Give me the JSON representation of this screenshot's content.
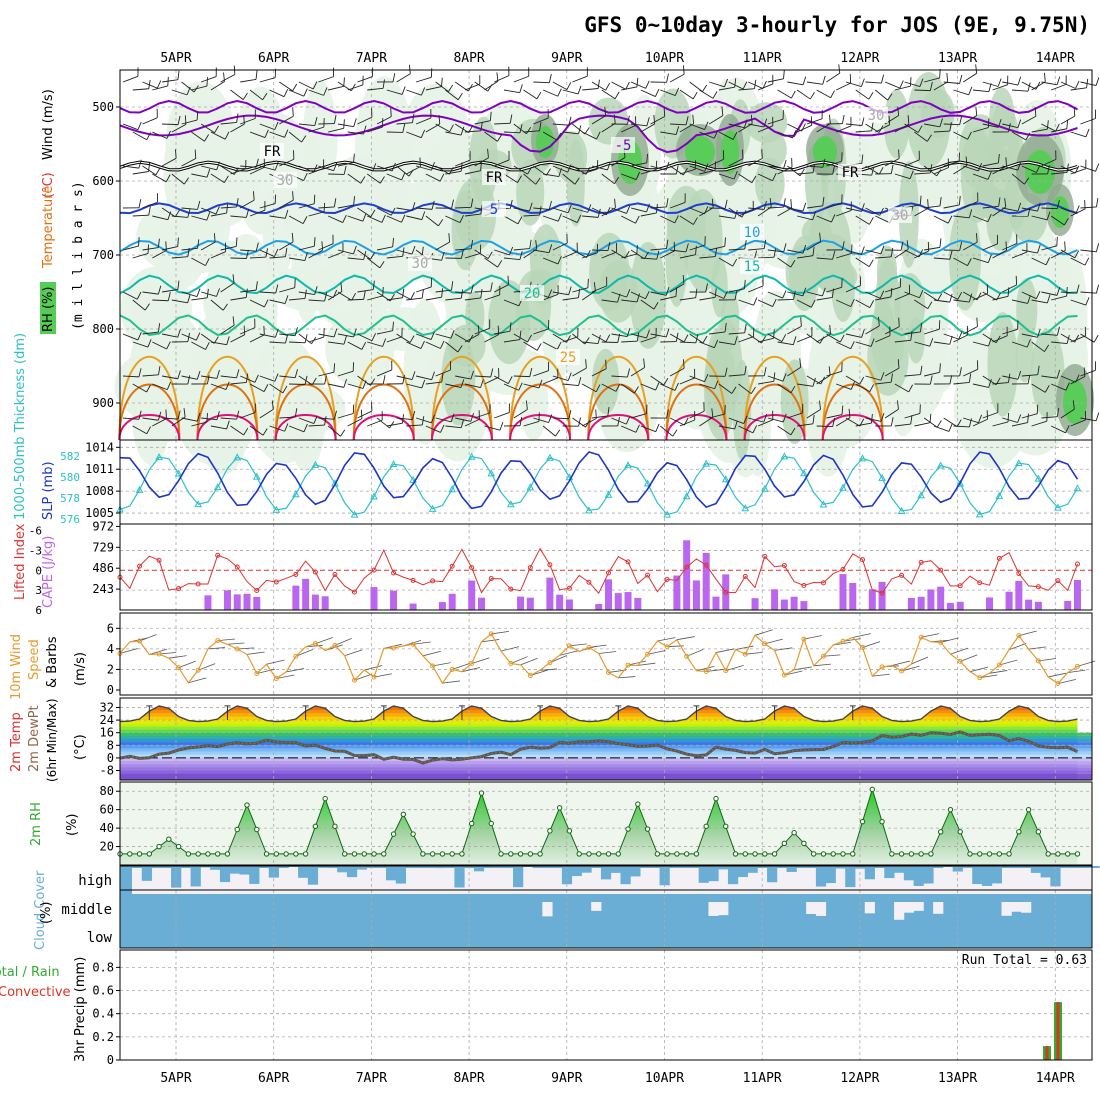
{
  "title": "GFS 0~10day 3-hourly for JOS (9E, 9.75N)",
  "dates": [
    "5APR",
    "6APR",
    "7APR",
    "8APR",
    "9APR",
    "10APR",
    "11APR",
    "12APR",
    "13APR",
    "14APR"
  ],
  "colors": {
    "rh_green": "#55cc55",
    "rh_light": "#e6f3e6",
    "rh_mid": "#b8d6b8",
    "rh_dark": "#8fa98f",
    "purple": "#8000c0",
    "blue": "#1f3fcf",
    "lightblue": "#1fa0e6",
    "teal": "#10b9a9",
    "seagreen": "#20c090",
    "orange": "#e8a020",
    "darkorange": "#e07010",
    "magenta": "#e0107a",
    "slp_line": "#1d35c8",
    "thickness_line": "#2cc0c8",
    "li_line": "#dd3333",
    "cape_bar": "#bb66ee",
    "wind_line": "#e69a2e",
    "temp_line": "#444444",
    "dew_line": "#8b6a4a",
    "cloud": "#6aaed6",
    "cloud_bg": "#f3f0f6",
    "precip_total": "#33aa33",
    "precip_conv": "#dd3322"
  },
  "panel1": {
    "ylabel_parts": {
      "rh": "RH (%)",
      "temp": "Temperature",
      "unit": "(°C)",
      "wind": "Wind (m/s)",
      "mb": "(m i l l i b a r s)"
    },
    "pressure_ticks": [
      "500",
      "600",
      "700",
      "800",
      "900"
    ],
    "contour_labels": [
      "FR",
      "FR",
      "FR",
      "-5",
      "5",
      "10",
      "15",
      "20",
      "25",
      "30",
      "30",
      "30",
      "30"
    ]
  },
  "panel2": {
    "label_left": "1000-500mb Thickness (dm)",
    "label_right": "SLP (mb)",
    "thickness_ticks": [
      "582",
      "580",
      "578",
      "576"
    ],
    "slp_ticks": [
      "1014",
      "1011",
      "1008",
      "1005"
    ]
  },
  "panel3": {
    "label_left": "Lifted Index",
    "label_right": "CAPE (J/kg)",
    "li_ticks": [
      "-6",
      "-3",
      "0",
      "3",
      "6"
    ],
    "cape_ticks": [
      "972",
      "729",
      "486",
      "243"
    ]
  },
  "panel4": {
    "label": [
      "10m Wind",
      "Speed",
      "& Barbs"
    ],
    "unit": "(m/s)",
    "ticks": [
      "6",
      "4",
      "2",
      "0"
    ]
  },
  "panel5": {
    "label": [
      "2m Temp",
      "2m DewPt",
      "(6hr Min/Max)"
    ],
    "unit": "(°C)",
    "ticks": [
      "32",
      "24",
      "16",
      "8",
      "0",
      "-8"
    ]
  },
  "panel6": {
    "label": "2m RH",
    "unit": "(%)",
    "ticks": [
      "80",
      "60",
      "40",
      "20"
    ]
  },
  "panel7": {
    "label": "Cloud Cover",
    "unit": "(%)",
    "levels": [
      "high",
      "middle",
      "low"
    ]
  },
  "panel8": {
    "label_total": "Total / Rain",
    "label_conv": "Convective",
    "ylabel": "3hr Precip (mm)",
    "ticks": [
      "0.8",
      "0.6",
      "0.4",
      "0.2",
      "0"
    ],
    "run_total": "Run Total = 0.63"
  },
  "chart_data": {
    "type": "line",
    "title": "GFS 0~10day 3-hourly for JOS (9E, 9.75N)",
    "x": [
      "5APR",
      "6APR",
      "7APR",
      "8APR",
      "9APR",
      "10APR",
      "11APR",
      "12APR",
      "13APR",
      "14APR"
    ],
    "series": [
      {
        "name": "SLP (mb)",
        "values": [
          1007,
          1013,
          1007,
          1012,
          1008,
          1012,
          1008,
          1013,
          1007,
          1012
        ]
      },
      {
        "name": "1000-500mb Thickness (dm)",
        "values": [
          581,
          577,
          582,
          578,
          582,
          578,
          582,
          578,
          581,
          577
        ]
      },
      {
        "name": "3hr Precip (mm)",
        "values": [
          0,
          0,
          0,
          0,
          0,
          0,
          0,
          0,
          0,
          0.5
        ]
      }
    ],
    "precip_last": [
      0.12,
      0.5
    ],
    "run_total": 0.63
  }
}
